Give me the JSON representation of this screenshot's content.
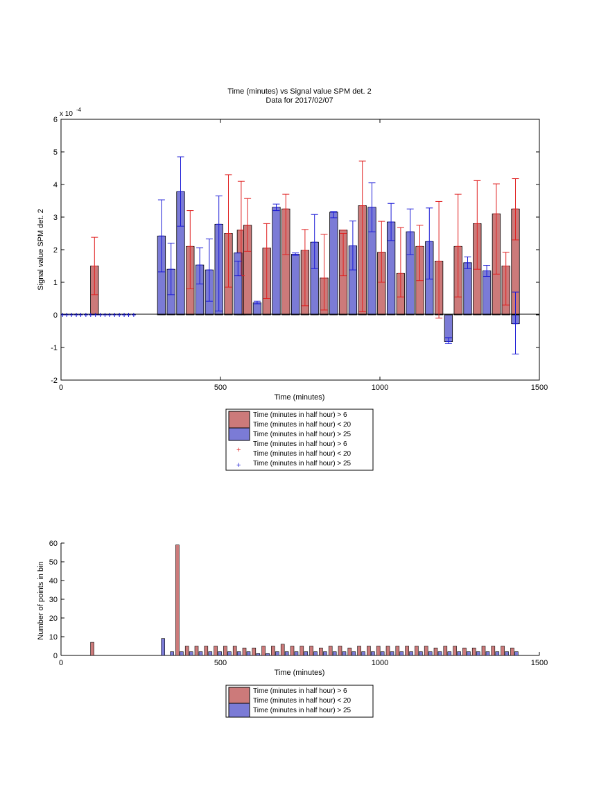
{
  "chart_data": [
    {
      "type": "bar",
      "title": "Time (minutes) vs Signal value SPM det. 2",
      "subtitle": "Data for 2017/02/07",
      "xlabel": "Time (minutes)",
      "ylabel": "Signal value SPM det. 2",
      "y_exponent_label": "x 10",
      "y_exponent": "-4",
      "xlim": [
        0,
        1500
      ],
      "ylim": [
        -2,
        6
      ],
      "xticks": [
        "0",
        "500",
        "1000",
        "1500"
      ],
      "yticks": [
        "-2",
        "-1",
        "0",
        "1",
        "2",
        "3",
        "4",
        "5",
        "6"
      ],
      "grid": false,
      "legend_position": "bottom-center",
      "legend": [
        "Time (minutes in half hour) > 6",
        "Time (minutes in half hour) < 20",
        "Time (minutes in half hour) > 25",
        "Time (minutes in half hour) > 6",
        "Time (minutes in half hour) < 20",
        "Time (minutes in half hour) > 25"
      ],
      "colors": {
        "red_bar": "#cc7a7a",
        "blue_bar": "#7b7bd6",
        "red_err": "#e02020",
        "blue_err": "#1a1ad6"
      },
      "series": [
        {
          "name": "Time (minutes in half hour) > 6 / Time (minutes in half hour) < 20",
          "x": [
            105,
            345,
            405,
            525,
            565,
            585,
            645,
            705,
            765,
            825,
            885,
            945,
            1005,
            1065,
            1125,
            1185,
            1245,
            1305,
            1365,
            1395,
            1425
          ],
          "values": [
            1.5,
            0,
            2.1,
            2.5,
            2.6,
            2.75,
            2.05,
            3.25,
            1.98,
            1.13,
            2.6,
            3.35,
            1.92,
            1.27,
            2.1,
            1.65,
            2.1,
            2.8,
            3.1,
            1.5,
            3.25
          ],
          "err_low": [
            0.62,
            0,
            0.8,
            0.85,
            1.2,
            1.95,
            0.5,
            1.85,
            0.28,
            0.15,
            1.2,
            0.1,
            1.0,
            0.55,
            1.05,
            -0.1,
            0.55,
            1.4,
            1.25,
            0.3,
            2.3
          ],
          "err_high": [
            2.38,
            0,
            3.2,
            4.3,
            4.1,
            3.57,
            2.8,
            3.7,
            2.62,
            2.47,
            2.5,
            4.72,
            2.87,
            2.68,
            2.75,
            3.48,
            3.7,
            4.12,
            4.02,
            1.92,
            4.18
          ]
        },
        {
          "name": "Time (minutes in half hour) > 25",
          "x": [
            315,
            345,
            375,
            435,
            465,
            495,
            555,
            615,
            675,
            735,
            795,
            855,
            915,
            975,
            1035,
            1095,
            1155,
            1215,
            1275,
            1335,
            1425
          ],
          "values": [
            2.42,
            1.4,
            3.78,
            1.53,
            1.38,
            2.78,
            1.9,
            0.37,
            3.3,
            1.86,
            2.23,
            3.15,
            2.12,
            3.3,
            2.85,
            2.55,
            2.25,
            -0.82,
            1.6,
            1.35,
            -0.27
          ],
          "err_low": [
            1.32,
            0.62,
            2.72,
            0.95,
            0.42,
            0.12,
            1.2,
            0.34,
            3.2,
            1.83,
            1.42,
            2.98,
            1.38,
            2.55,
            2.28,
            1.85,
            1.1,
            -0.88,
            1.42,
            1.18,
            -1.2
          ],
          "err_high": [
            3.53,
            2.2,
            4.85,
            2.06,
            2.33,
            3.65,
            1.65,
            0.42,
            3.4,
            1.9,
            3.08,
            3.17,
            2.88,
            4.05,
            3.42,
            3.25,
            3.28,
            -0.7,
            1.78,
            1.52,
            0.7
          ]
        }
      ]
    },
    {
      "type": "bar",
      "xlabel": "Time (minutes)",
      "ylabel": "Number of points in bin",
      "xlim": [
        0,
        1500
      ],
      "ylim": [
        0,
        60
      ],
      "xticks": [
        "0",
        "500",
        "1000",
        "1500"
      ],
      "yticks": [
        "0",
        "10",
        "20",
        "30",
        "40",
        "50",
        "60"
      ],
      "grid": false,
      "legend_position": "bottom-center",
      "legend": [
        "Time (minutes in half hour) > 6",
        "Time (minutes in half hour) < 20",
        "Time (minutes in half hour) > 25"
      ],
      "series": [
        {
          "name": "Time (minutes in half hour) > 6 / Time (minutes in half hour) < 20",
          "x": [
            98,
            365,
            395,
            425,
            455,
            485,
            515,
            545,
            575,
            605,
            635,
            665,
            695,
            725,
            755,
            785,
            815,
            845,
            875,
            905,
            935,
            965,
            995,
            1025,
            1055,
            1085,
            1115,
            1145,
            1175,
            1205,
            1235,
            1265,
            1295,
            1325,
            1355,
            1385,
            1415
          ],
          "values": [
            7,
            59,
            5,
            5,
            5,
            5,
            5,
            5,
            4,
            4,
            5,
            5,
            6,
            5,
            5,
            5,
            4,
            5,
            5,
            4,
            5,
            5,
            5,
            5,
            5,
            5,
            5,
            5,
            4,
            5,
            5,
            4,
            4,
            5,
            5,
            5,
            4
          ]
        },
        {
          "name": "Time (minutes in half hour) > 25",
          "x": [
            320,
            348,
            378,
            408,
            438,
            468,
            498,
            528,
            558,
            588,
            618,
            648,
            678,
            708,
            738,
            768,
            798,
            828,
            858,
            888,
            918,
            948,
            978,
            1008,
            1038,
            1068,
            1098,
            1128,
            1158,
            1188,
            1218,
            1248,
            1278,
            1308,
            1338,
            1368,
            1398,
            1428
          ],
          "values": [
            9,
            2,
            2,
            2,
            2,
            2,
            2,
            2,
            2,
            2,
            1,
            1,
            2,
            2,
            2,
            2,
            2,
            2,
            2,
            2,
            2,
            2,
            2,
            2,
            2,
            2,
            2,
            2,
            2,
            2,
            2,
            2,
            2,
            2,
            2,
            2,
            2,
            2
          ]
        }
      ]
    }
  ]
}
